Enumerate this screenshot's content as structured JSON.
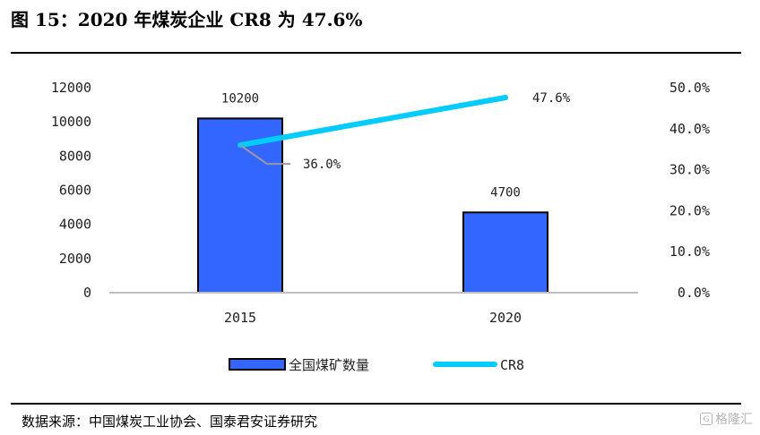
{
  "header": {
    "title": "图 15：2020 年煤炭企业 CR8 为 47.6%"
  },
  "footer": {
    "source": "数据来源：中国煤炭工业协会、国泰君安证券研究",
    "watermark": "格隆汇"
  },
  "chart_data": {
    "type": "bar",
    "categories": [
      "2015",
      "2020"
    ],
    "series": [
      {
        "name": "全国煤矿数量",
        "type": "bar",
        "axis": "left",
        "values": [
          10200,
          4700
        ],
        "labels": [
          "10200",
          "4700"
        ],
        "color": "#3366ff"
      },
      {
        "name": "CR8",
        "type": "line",
        "axis": "right",
        "values": [
          36.0,
          47.6
        ],
        "labels": [
          "36.0%",
          "47.6%"
        ],
        "color": "#00ccff"
      }
    ],
    "left_axis": {
      "ylim": [
        0,
        12000
      ],
      "ticks": [
        "0",
        "2000",
        "4000",
        "6000",
        "8000",
        "10000",
        "12000"
      ]
    },
    "right_axis": {
      "ylim": [
        0,
        50
      ],
      "ticks": [
        "0.0%",
        "10.0%",
        "20.0%",
        "30.0%",
        "40.0%",
        "50.0%"
      ]
    },
    "legend": "bottom",
    "grid": false
  }
}
